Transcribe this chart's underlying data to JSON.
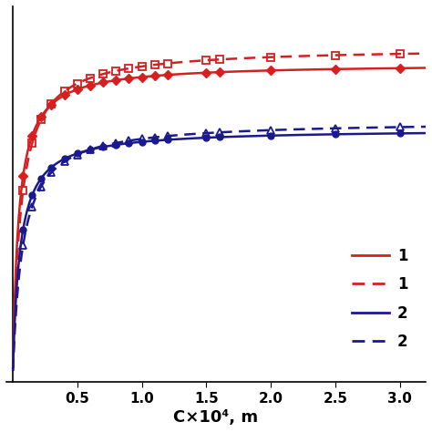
{
  "title": "",
  "xlabel": "C×10⁴, m",
  "xlim": [
    -0.05,
    3.2
  ],
  "ylim": [
    -0.02,
    0.9
  ],
  "xticks": [
    0.5,
    1.0,
    1.5,
    2.0,
    2.5,
    3.0
  ],
  "color_red": "#d42020",
  "color_blue": "#1a1a8e",
  "curves": {
    "red_solid": {
      "A_max": 0.76,
      "K": 22.0,
      "color": "#d42020",
      "linestyle": "-",
      "marker": "D",
      "marker_filled": true,
      "marker_size": 5
    },
    "red_dashed": {
      "A_max": 0.8,
      "K": 16.0,
      "color": "#d42020",
      "linestyle": "--",
      "marker": "s",
      "marker_filled": false,
      "marker_size": 5.5
    },
    "blue_solid": {
      "A_max": 0.6,
      "K": 18.0,
      "color": "#1a1a8e",
      "linestyle": "-",
      "marker": "o",
      "marker_filled": true,
      "marker_size": 5
    },
    "blue_dashed": {
      "A_max": 0.62,
      "K": 13.0,
      "color": "#1a1a8e",
      "linestyle": "--",
      "marker": "^",
      "marker_filled": false,
      "marker_size": 5.5
    }
  },
  "data_points_x": [
    0.08,
    0.15,
    0.22,
    0.3,
    0.4,
    0.5,
    0.6,
    0.7,
    0.8,
    0.9,
    1.0,
    1.1,
    1.2,
    1.5,
    1.6,
    2.0,
    2.5,
    3.0
  ]
}
